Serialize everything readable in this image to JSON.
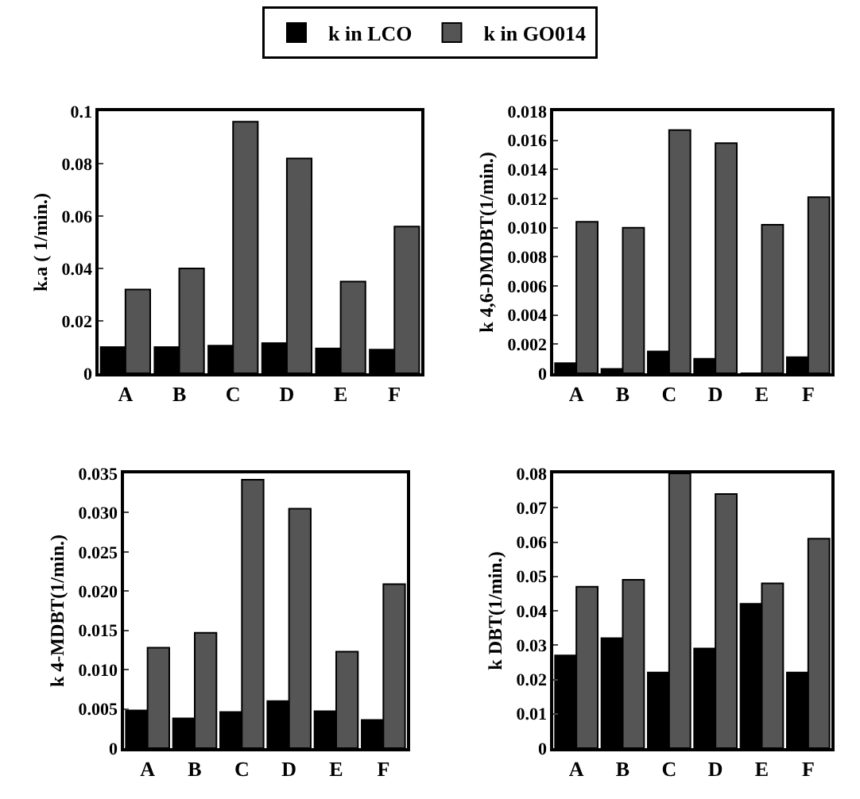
{
  "chart_data": [
    {
      "type": "bar",
      "ylabel": "k.a ( 1/min.)",
      "categories": [
        "A",
        "B",
        "C",
        "D",
        "E",
        "F"
      ],
      "legend": "top",
      "grid": false,
      "ylim": [
        0,
        0.1
      ],
      "yticks": [
        0,
        0.02,
        0.04,
        0.06,
        0.08,
        0.1
      ],
      "series": [
        {
          "name": "k in LCO",
          "color": "#000000",
          "values": [
            0.01,
            0.01,
            0.0105,
            0.0115,
            0.0095,
            0.009
          ]
        },
        {
          "name": "k in GO014",
          "color": "#555555",
          "values": [
            0.032,
            0.04,
            0.096,
            0.082,
            0.035,
            0.056
          ]
        }
      ]
    },
    {
      "type": "bar",
      "ylabel": "k 4,6-DMDBT(1/min.)",
      "categories": [
        "A",
        "B",
        "C",
        "D",
        "E",
        "F"
      ],
      "grid": false,
      "ylim": [
        0,
        0.018
      ],
      "yticks": [
        0,
        {
          "value": 0.002,
          "label": "0.002"
        },
        {
          "value": 0.004,
          "label": "0.004"
        },
        {
          "value": 0.006,
          "label": "0.006"
        },
        {
          "value": 0.008,
          "label": "0.008"
        },
        {
          "value": 0.01,
          "label": "0.010"
        },
        {
          "value": 0.012,
          "label": "0.012"
        },
        {
          "value": 0.014,
          "label": "0.014"
        },
        {
          "value": 0.016,
          "label": "0.016"
        },
        {
          "value": 0.018,
          "label": "0.018"
        }
      ],
      "series": [
        {
          "color": "#000000",
          "values": [
            0.0007,
            0.0003,
            0.0015,
            0.001,
            0,
            0.0011
          ]
        },
        {
          "color": "#555555",
          "values": [
            0.0104,
            0.01,
            0.0167,
            0.0158,
            0.0102,
            0.0121
          ]
        }
      ]
    },
    {
      "type": "bar",
      "ylabel": "k 4-MDBT(1/min.)",
      "categories": [
        "A",
        "B",
        "C",
        "D",
        "E",
        "F"
      ],
      "grid": false,
      "ylim": [
        0,
        0.035
      ],
      "yticks": [
        0,
        {
          "value": 0.005,
          "label": "0.005"
        },
        {
          "value": 0.01,
          "label": "0.010"
        },
        {
          "value": 0.015,
          "label": "0.015"
        },
        {
          "value": 0.02,
          "label": "0.020"
        },
        {
          "value": 0.025,
          "label": "0.025"
        },
        {
          "value": 0.03,
          "label": "0.030"
        },
        {
          "value": 0.035,
          "label": "0.035"
        }
      ],
      "series": [
        {
          "color": "#000000",
          "values": [
            0.0048,
            0.0038,
            0.0046,
            0.006,
            0.0047,
            0.0036
          ]
        },
        {
          "color": "#555555",
          "values": [
            0.0128,
            0.0147,
            0.0342,
            0.0305,
            0.0123,
            0.0209
          ]
        }
      ]
    },
    {
      "type": "bar",
      "ylabel": "k DBT(1/min.)",
      "categories": [
        "A",
        "B",
        "C",
        "D",
        "E",
        "F"
      ],
      "grid": false,
      "ylim": [
        0,
        0.08
      ],
      "yticks": [
        0,
        0.01,
        0.02,
        0.03,
        0.04,
        0.05,
        0.06,
        0.07,
        0.08
      ],
      "series": [
        {
          "color": "#000000",
          "values": [
            0.027,
            0.032,
            0.022,
            0.029,
            0.042,
            0.022
          ]
        },
        {
          "color": "#555555",
          "values": [
            0.047,
            0.049,
            0.08,
            0.074,
            0.048,
            0.061
          ]
        }
      ]
    }
  ]
}
